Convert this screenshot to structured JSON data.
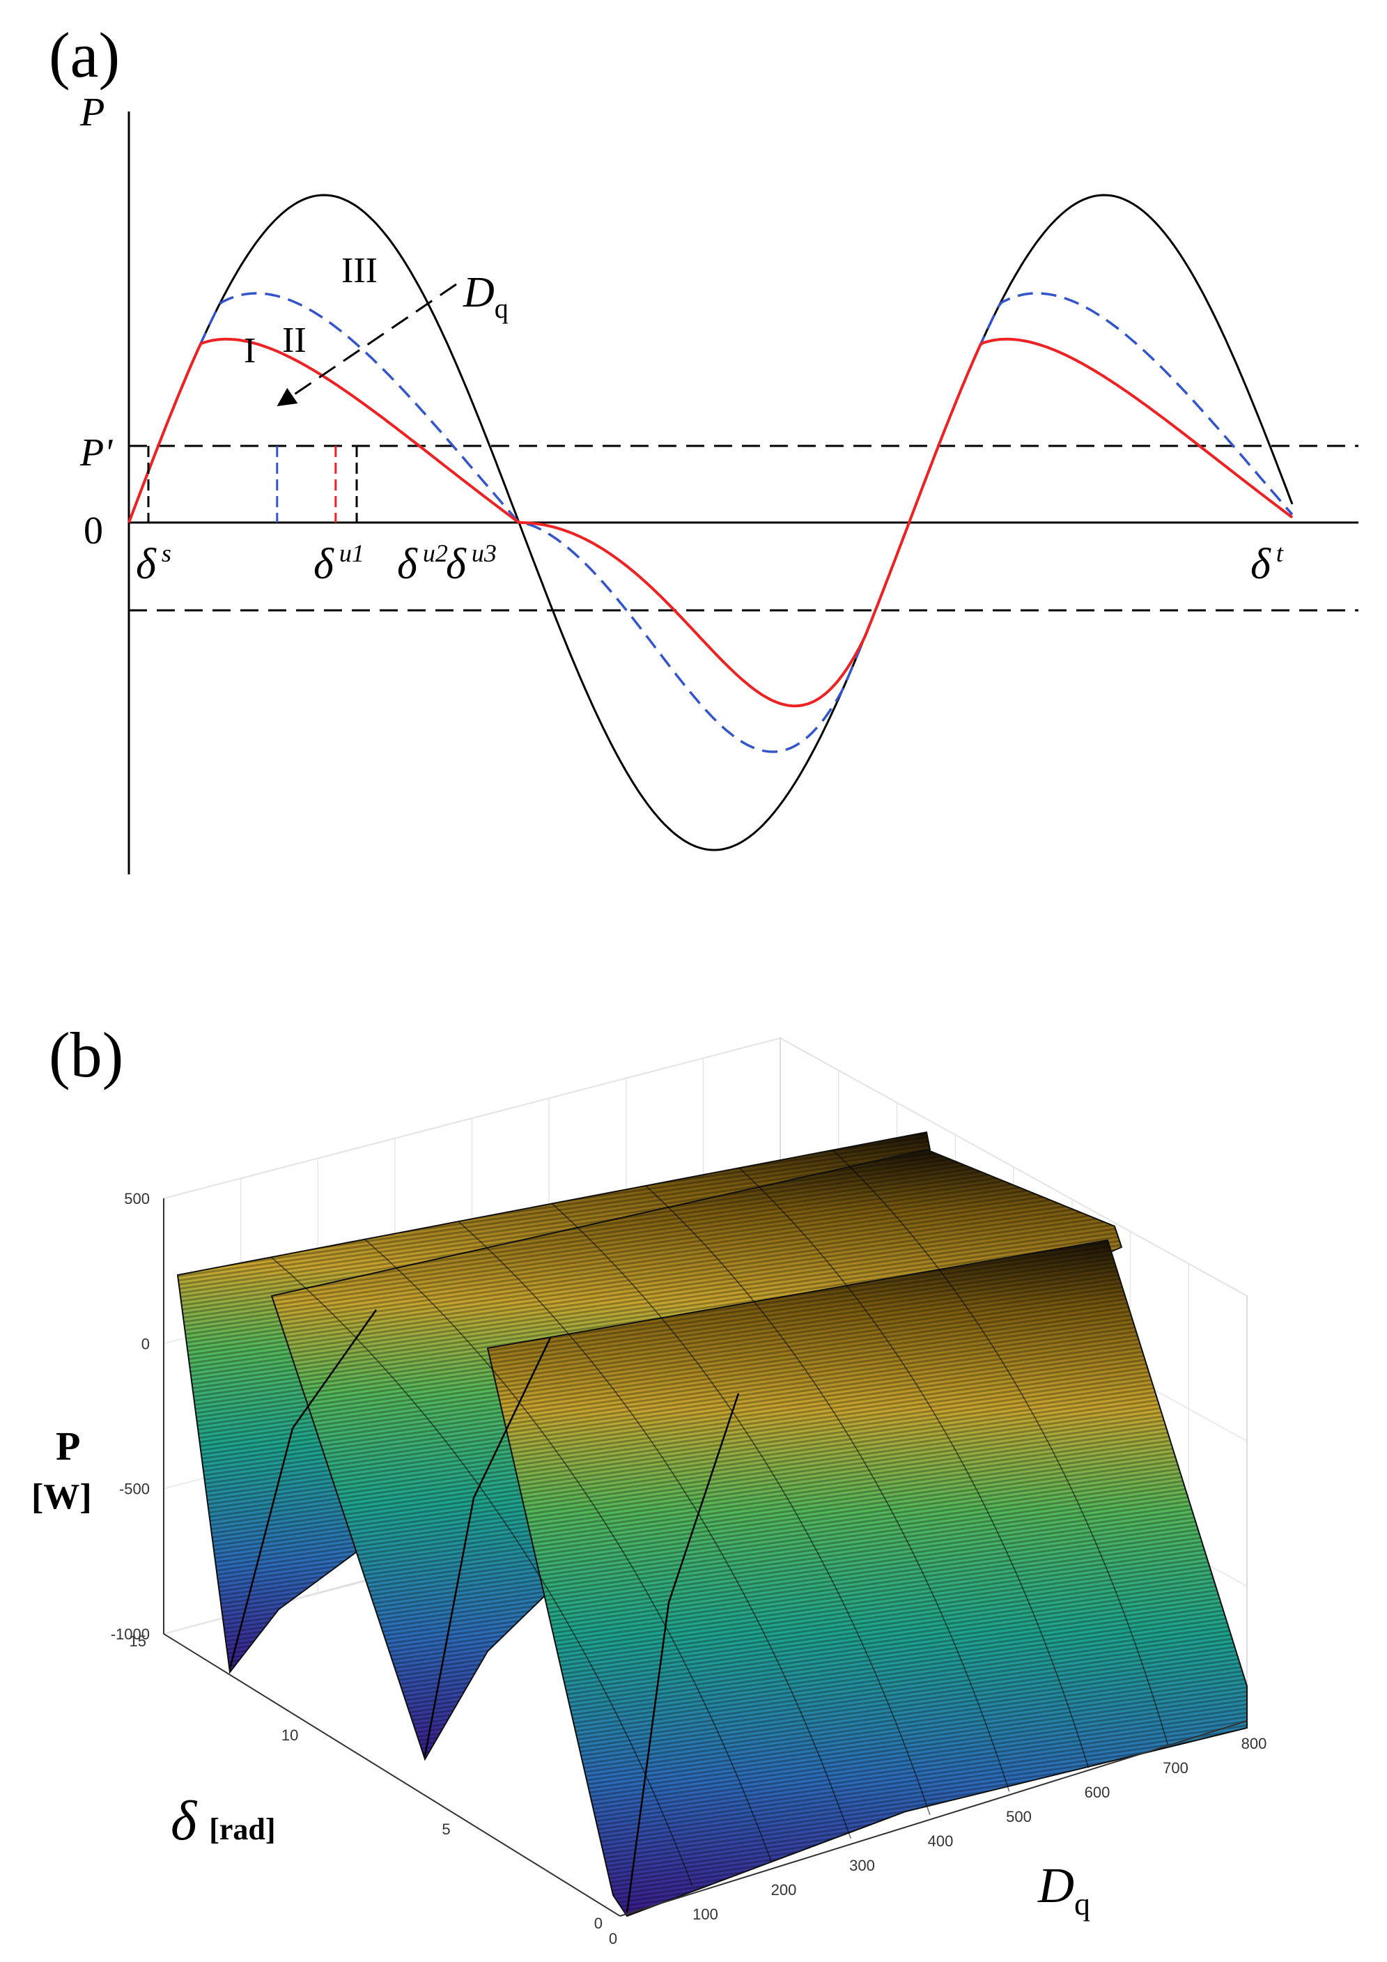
{
  "chart_data": [
    {
      "panel": "(a)",
      "type": "line",
      "ylabel": "P",
      "y_ticks": [
        "P'",
        "0"
      ],
      "x_ticks": [
        "δ s",
        "δ u1",
        "δ u2",
        "δ u3",
        "δ t"
      ],
      "x_tick_glyphs": {
        "s": "δ",
        "u1": "δ",
        "u2": "δ",
        "u3": "δ",
        "t": "δ"
      },
      "x_tick_subs": {
        "s": "s",
        "u1": "u1",
        "u2": "u2",
        "u3": "u3",
        "t": "t"
      },
      "curve_labels": [
        "III",
        "II",
        "I"
      ],
      "arrow_label": "Dq",
      "arrow_label_main": "D",
      "arrow_label_sub": "q",
      "p_prime_level": 0.24,
      "lower_dashed_level": -0.27,
      "series": [
        {
          "label": "III",
          "color": "#000000",
          "style": "solid",
          "peak": 1.0
        },
        {
          "label": "II",
          "color": "#3355cc",
          "style": "dashed",
          "peak": 0.7
        },
        {
          "label": "I",
          "color": "#ee2222",
          "style": "solid",
          "peak": 0.56
        }
      ],
      "markers": {
        "s": 0.025,
        "u1": 0.19,
        "u2": 0.265,
        "u3": 0.292
      }
    },
    {
      "panel": "(b)",
      "type": "surface",
      "zlabel": [
        "P",
        "[W]"
      ],
      "ylabel_glyph": "δ",
      "ylabel": "[rad]",
      "xlabel_main": "D",
      "xlabel_sub": "q",
      "z_ticks": [
        500,
        0,
        -500,
        -1000
      ],
      "y_ticks": [
        15,
        10,
        5,
        0
      ],
      "x_ticks": [
        0,
        100,
        200,
        300,
        400,
        500,
        600,
        700,
        800
      ],
      "zlim": [
        -1000,
        500
      ],
      "ylim": [
        0,
        15
      ],
      "xlim": [
        0,
        800
      ],
      "colormap": [
        "#3b1a8a",
        "#2d6bb8",
        "#1fa58f",
        "#55b85b",
        "#c8a530",
        "#7a5b10",
        "#000000"
      ]
    }
  ]
}
